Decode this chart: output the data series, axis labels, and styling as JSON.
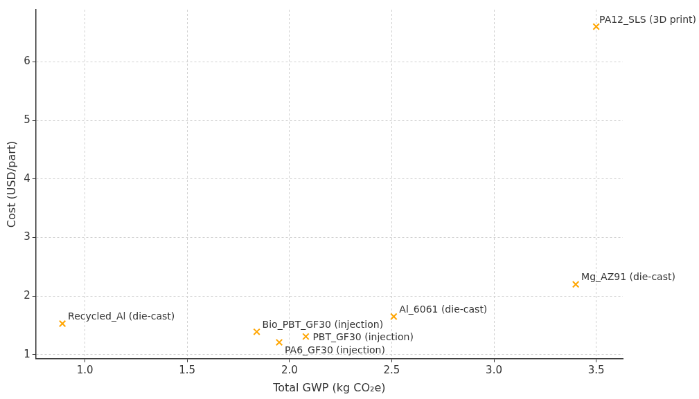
{
  "chart_data": {
    "type": "scatter",
    "xlabel": "Total GWP (kg CO₂e)",
    "ylabel": "Cost (USD/part)",
    "x": [
      0.89,
      1.84,
      1.95,
      2.08,
      2.51,
      3.4,
      3.5
    ],
    "series": [
      {
        "color": "#ffa500",
        "values": [
          1.53,
          1.39,
          1.21,
          1.31,
          1.65,
          2.2,
          6.6
        ]
      }
    ],
    "xlim": [
      0.76,
      3.63
    ],
    "xticks": [
      {
        "value": 1,
        "label": "1.0"
      },
      {
        "value": 1.5,
        "label": "1.5"
      },
      {
        "value": 2,
        "label": "2.0"
      },
      {
        "value": 2.5,
        "label": "2.5"
      },
      {
        "value": 3,
        "label": "3.0"
      },
      {
        "value": 3.5,
        "label": "3.5"
      }
    ],
    "ylim": [
      0.93,
      6.89
    ],
    "yticks": [
      1,
      2,
      3,
      4,
      5,
      6
    ],
    "grid": true,
    "marker": "cross",
    "legend": false,
    "annotations": [
      {
        "text": "Recycled_Al (die-cast)",
        "x": 0.89,
        "y": 1.53
      },
      {
        "text": "Bio_PBT_GF30 (injection)",
        "x": 1.84,
        "y": 1.39
      },
      {
        "text": "PA6_GF30 (injection)",
        "x": 1.95,
        "y": 1.21
      },
      {
        "text": "PBT_GF30 (injection)",
        "x": 2.08,
        "y": 1.31
      },
      {
        "text": "Al_6061 (die-cast)",
        "x": 2.51,
        "y": 1.65
      },
      {
        "text": "Mg_AZ91 (die-cast)",
        "x": 3.4,
        "y": 2.2
      },
      {
        "text": "PA12_SLS (3D print)",
        "x": 3.5,
        "y": 6.6
      }
    ]
  }
}
